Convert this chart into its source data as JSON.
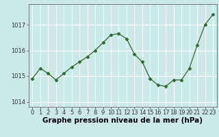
{
  "hours": [
    0,
    1,
    2,
    3,
    4,
    5,
    6,
    7,
    8,
    9,
    10,
    11,
    12,
    13,
    14,
    15,
    16,
    17,
    18,
    19,
    20,
    21,
    22,
    23
  ],
  "pressure": [
    1014.9,
    1015.3,
    1015.1,
    1014.85,
    1015.1,
    1015.35,
    1015.55,
    1015.75,
    1016.0,
    1016.3,
    1016.6,
    1016.65,
    1016.45,
    1015.85,
    1015.55,
    1014.9,
    1014.65,
    1014.6,
    1014.85,
    1014.85,
    1015.3,
    1016.2,
    1017.0,
    1017.4
  ],
  "line_color": "#2d6a2d",
  "marker": "D",
  "marker_size": 2.5,
  "bg_color": "#cce9e9",
  "grid_color": "#ffffff",
  "ylabel_ticks": [
    1014,
    1015,
    1016,
    1017
  ],
  "ylim": [
    1013.8,
    1017.8
  ],
  "xlim": [
    -0.5,
    23.5
  ],
  "xlabel": "Graphe pression niveau de la mer (hPa)",
  "xlabel_fontsize": 7.5,
  "tick_fontsize": 6,
  "title": ""
}
